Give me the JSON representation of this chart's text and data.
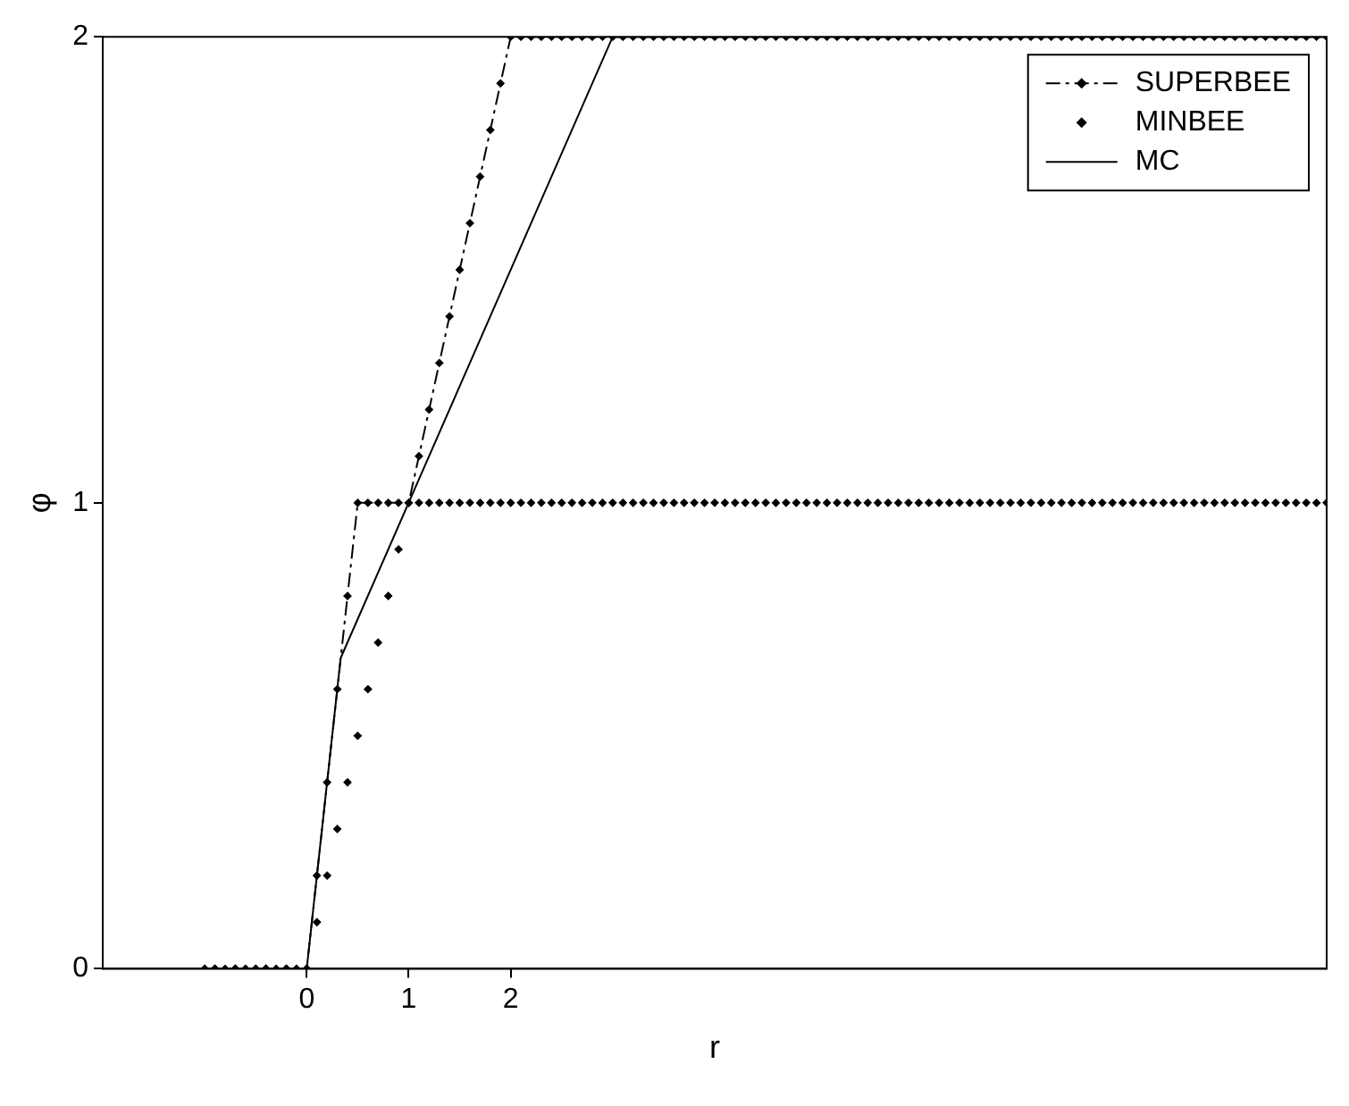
{
  "chart_data": {
    "type": "line",
    "xlabel": "r",
    "ylabel": "φ",
    "x": [
      -1,
      -0.9,
      -0.8,
      -0.7,
      -0.6,
      -0.5,
      -0.4,
      -0.3,
      -0.2,
      -0.1,
      0,
      0.1,
      0.2,
      0.3,
      0.4,
      0.5,
      0.6,
      0.7,
      0.8,
      0.9,
      1,
      1.1,
      1.2,
      1.3,
      1.4,
      1.5,
      1.6,
      1.7,
      1.8,
      1.9,
      2,
      2.1,
      2.2,
      2.3,
      2.4,
      2.5,
      2.6,
      2.7,
      2.8,
      2.9,
      3,
      3.1,
      3.2,
      3.3,
      3.4,
      3.5,
      3.6,
      3.7,
      3.8,
      3.9,
      4,
      4.1,
      4.2,
      4.3,
      4.4,
      4.5,
      4.6,
      4.7,
      4.8,
      4.9,
      5,
      5.1,
      5.2,
      5.3,
      5.4,
      5.5,
      5.6,
      5.7,
      5.8,
      5.9,
      6,
      6.1,
      6.2,
      6.3,
      6.4,
      6.5,
      6.6,
      6.7,
      6.8,
      6.9,
      7,
      7.1,
      7.2,
      7.3,
      7.4,
      7.5,
      7.6,
      7.7,
      7.8,
      7.9,
      8,
      8.1,
      8.2,
      8.3,
      8.4,
      8.5,
      8.6,
      8.7,
      8.8,
      8.9,
      9,
      9.1,
      9.2,
      9.3,
      9.4,
      9.5,
      9.6,
      9.7,
      9.8,
      9.9,
      10
    ],
    "series": [
      {
        "name": "SUPERBEE",
        "type": "line",
        "color": "#000000",
        "marker": "diamond",
        "line_style": "dashed",
        "values": [
          0,
          0,
          0,
          0,
          0,
          0,
          0,
          0,
          0,
          0,
          0,
          0.2,
          0.4,
          0.6,
          0.8,
          1,
          1,
          1,
          1,
          1,
          1,
          1.1,
          1.2,
          1.3,
          1.4,
          1.5,
          1.6,
          1.7,
          1.8,
          1.9,
          2,
          2,
          2,
          2,
          2,
          2,
          2,
          2,
          2,
          2,
          2,
          2,
          2,
          2,
          2,
          2,
          2,
          2,
          2,
          2,
          2,
          2,
          2,
          2,
          2,
          2,
          2,
          2,
          2,
          2,
          2,
          2,
          2,
          2,
          2,
          2,
          2,
          2,
          2,
          2,
          2,
          2,
          2,
          2,
          2,
          2,
          2,
          2,
          2,
          2,
          2,
          2,
          2,
          2,
          2,
          2,
          2,
          2,
          2,
          2,
          2,
          2,
          2,
          2,
          2,
          2,
          2,
          2,
          2,
          2,
          2,
          2,
          2,
          2,
          2,
          2,
          2,
          2,
          2,
          2,
          2
        ]
      },
      {
        "name": "MINBEE",
        "type": "scatter",
        "color": "#000000",
        "marker": "diamond",
        "values": [
          0,
          0,
          0,
          0,
          0,
          0,
          0,
          0,
          0,
          0,
          0,
          0.1,
          0.2,
          0.3,
          0.4,
          0.5,
          0.6,
          0.7,
          0.8,
          0.9,
          1,
          1,
          1,
          1,
          1,
          1,
          1,
          1,
          1,
          1,
          1,
          1,
          1,
          1,
          1,
          1,
          1,
          1,
          1,
          1,
          1,
          1,
          1,
          1,
          1,
          1,
          1,
          1,
          1,
          1,
          1,
          1,
          1,
          1,
          1,
          1,
          1,
          1,
          1,
          1,
          1,
          1,
          1,
          1,
          1,
          1,
          1,
          1,
          1,
          1,
          1,
          1,
          1,
          1,
          1,
          1,
          1,
          1,
          1,
          1,
          1,
          1,
          1,
          1,
          1,
          1,
          1,
          1,
          1,
          1,
          1,
          1,
          1,
          1,
          1,
          1,
          1,
          1,
          1,
          1,
          1,
          1,
          1,
          1,
          1,
          1,
          1,
          1,
          1,
          1,
          1
        ]
      },
      {
        "name": "MC",
        "type": "line",
        "color": "#000000",
        "marker": "none",
        "line_style": "solid",
        "x": [
          0,
          0.333,
          3,
          10
        ],
        "values": [
          0,
          0.667,
          2,
          2
        ]
      }
    ],
    "xlim": [
      -2,
      10
    ],
    "xticks": [
      0,
      1,
      2
    ],
    "ylim": [
      0,
      2
    ],
    "yticks": [
      0,
      1,
      2
    ],
    "grid": false,
    "legend": "top right"
  }
}
